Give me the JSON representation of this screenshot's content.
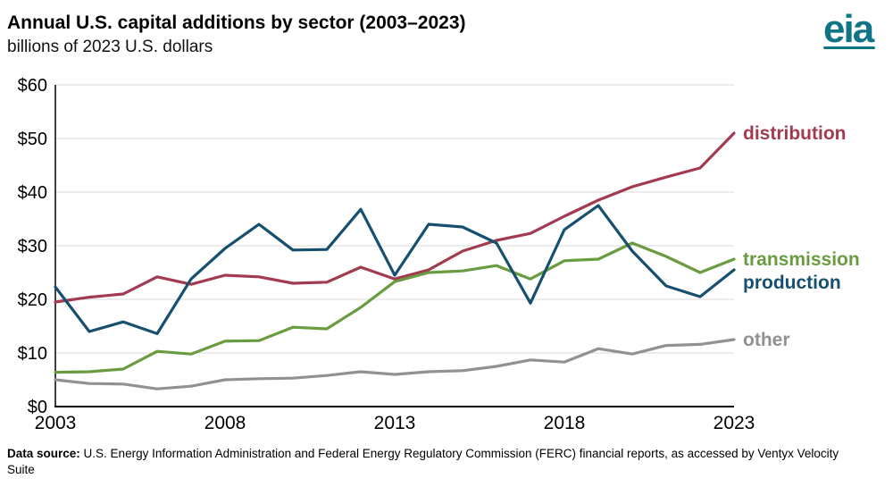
{
  "header": {
    "title": "Annual U.S. capital additions by sector (2003–2023)",
    "subtitle": "billions of 2023 U.S. dollars",
    "logo_text": "eia"
  },
  "chart_data": {
    "type": "line",
    "title": "Annual U.S. capital additions by sector (2003–2023)",
    "subtitle": "billions of 2023 U.S. dollars",
    "x": [
      2003,
      2004,
      2005,
      2006,
      2007,
      2008,
      2009,
      2010,
      2011,
      2012,
      2013,
      2014,
      2015,
      2016,
      2017,
      2018,
      2019,
      2020,
      2021,
      2022,
      2023
    ],
    "series": [
      {
        "name": "distribution",
        "color": "#a23b4f",
        "values": [
          19.5,
          20.4,
          21.0,
          24.2,
          22.8,
          24.5,
          24.2,
          23.0,
          23.2,
          26.0,
          23.8,
          25.5,
          29.0,
          31.0,
          32.3,
          35.5,
          38.5,
          41.0,
          42.8,
          44.5,
          51.0
        ]
      },
      {
        "name": "transmission",
        "color": "#699c40",
        "values": [
          6.4,
          6.5,
          7.0,
          10.3,
          9.8,
          12.2,
          12.3,
          14.8,
          14.5,
          18.5,
          23.3,
          25.0,
          25.3,
          26.3,
          23.8,
          27.2,
          27.5,
          30.5,
          28.0,
          25.0,
          27.5
        ]
      },
      {
        "name": "production",
        "color": "#17506f",
        "values": [
          22.3,
          14.0,
          15.8,
          13.6,
          23.8,
          29.5,
          34.0,
          29.2,
          29.3,
          36.8,
          24.5,
          34.0,
          33.5,
          30.5,
          19.3,
          33.0,
          37.5,
          29.0,
          22.5,
          20.5,
          25.5
        ]
      },
      {
        "name": "other",
        "color": "#919191",
        "values": [
          5.0,
          4.3,
          4.2,
          3.3,
          3.8,
          5.0,
          5.2,
          5.3,
          5.8,
          6.5,
          6.0,
          6.5,
          6.7,
          7.5,
          8.7,
          8.3,
          10.8,
          9.8,
          11.4,
          11.6,
          12.5
        ]
      }
    ],
    "ylim": [
      0,
      60
    ],
    "yticks": [
      0,
      10,
      20,
      30,
      40,
      50,
      60
    ],
    "ytick_labels": [
      "$0",
      "$10",
      "$20",
      "$30",
      "$40",
      "$50",
      "$60"
    ],
    "xticks": [
      2003,
      2008,
      2013,
      2018,
      2023
    ],
    "grid": true,
    "grid_color": "#d9d9d9",
    "axis_color": "#000000",
    "legend_position": "right-end-labels"
  },
  "footer": {
    "label": "Data source:",
    "text": "U.S. Energy Information Administration and Federal Energy Regulatory Commission (FERC) financial reports, as accessed by Ventyx Velocity Suite"
  }
}
